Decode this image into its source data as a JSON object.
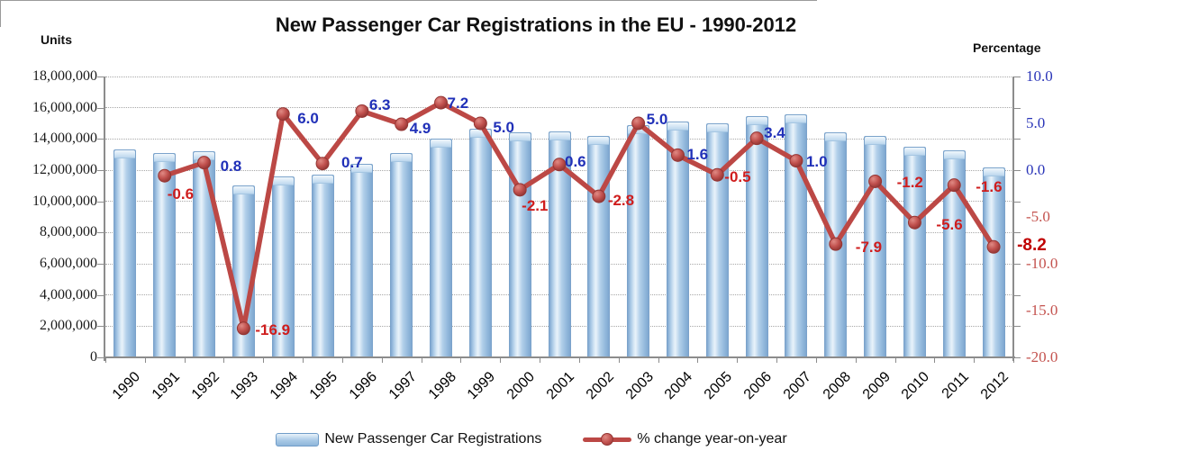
{
  "chart_data": {
    "type": "combo",
    "title": "New Passenger Car Registrations in the EU - 1990-2012",
    "left_axis": {
      "title": "Units",
      "min": 0,
      "max": 18000000,
      "step": 2000000,
      "tick_labels": [
        "18,000,000",
        "16,000,000",
        "14,000,000",
        "12,000,000",
        "10,000,000",
        "8,000,000",
        "6,000,000",
        "4,000,000",
        "2,000,000",
        "0"
      ]
    },
    "right_axis": {
      "title": "Percentage",
      "min": -20,
      "max": 10,
      "step": 5,
      "tick_labels": [
        "10.0",
        "5.0",
        "0.0",
        "-5.0",
        "-10.0",
        "-15.0",
        "-20.0"
      ]
    },
    "categories": [
      "1990",
      "1991",
      "1992",
      "1993",
      "1994",
      "1995",
      "1996",
      "1997",
      "1998",
      "1999",
      "2000",
      "2001",
      "2002",
      "2003",
      "2004",
      "2005",
      "2006",
      "2007",
      "2008",
      "2009",
      "2010",
      "2011",
      "2012"
    ],
    "series": [
      {
        "name": "New Passenger Car Registrations",
        "type": "bar",
        "axis": "left",
        "values": [
          13300000,
          13100000,
          13200000,
          11000000,
          11600000,
          11700000,
          12400000,
          13100000,
          14000000,
          14650000,
          14400000,
          14500000,
          14200000,
          14900000,
          15100000,
          15000000,
          15450000,
          15600000,
          14400000,
          14200000,
          13500000,
          13250000,
          12150000
        ]
      },
      {
        "name": "% change year-on-year",
        "type": "line",
        "axis": "right",
        "values": [
          null,
          -0.6,
          0.8,
          -16.9,
          6.0,
          0.7,
          6.3,
          4.9,
          7.2,
          5.0,
          -2.1,
          0.6,
          -2.8,
          5.0,
          1.6,
          -0.5,
          3.4,
          1.0,
          -7.9,
          -1.2,
          -5.6,
          -1.6,
          -8.2
        ],
        "point_labels": [
          "",
          "-0.6",
          "0.8",
          "-16.9",
          "6.0",
          "0.7",
          "6.3",
          "4.9",
          "7.2",
          "5.0",
          "-2.1",
          "0.6",
          "-2.8",
          "5.0",
          "1.6",
          "-0.5",
          "3.4",
          "1.0",
          "-7.9",
          "-1.2",
          "-5.6",
          "-1.6",
          "-8.2"
        ]
      }
    ],
    "legend": {
      "position": "bottom",
      "entries": [
        "New Passenger Car Registrations",
        "% change year-on-year"
      ]
    },
    "grid": true,
    "colors": {
      "bar_fill": "#a9c9e6",
      "bar_edge": "#7ba3cb",
      "line": "#bc4845",
      "marker": "#c0504d",
      "positive_label": "#2030b8",
      "negative_label": "#cf1d1d",
      "emphasis_label": "#c00000",
      "right_axis_positive": "#2a35b8",
      "right_axis_negative": "#c4534f",
      "axis": "#8c8c8c",
      "grid": "#a8a8a8"
    }
  }
}
